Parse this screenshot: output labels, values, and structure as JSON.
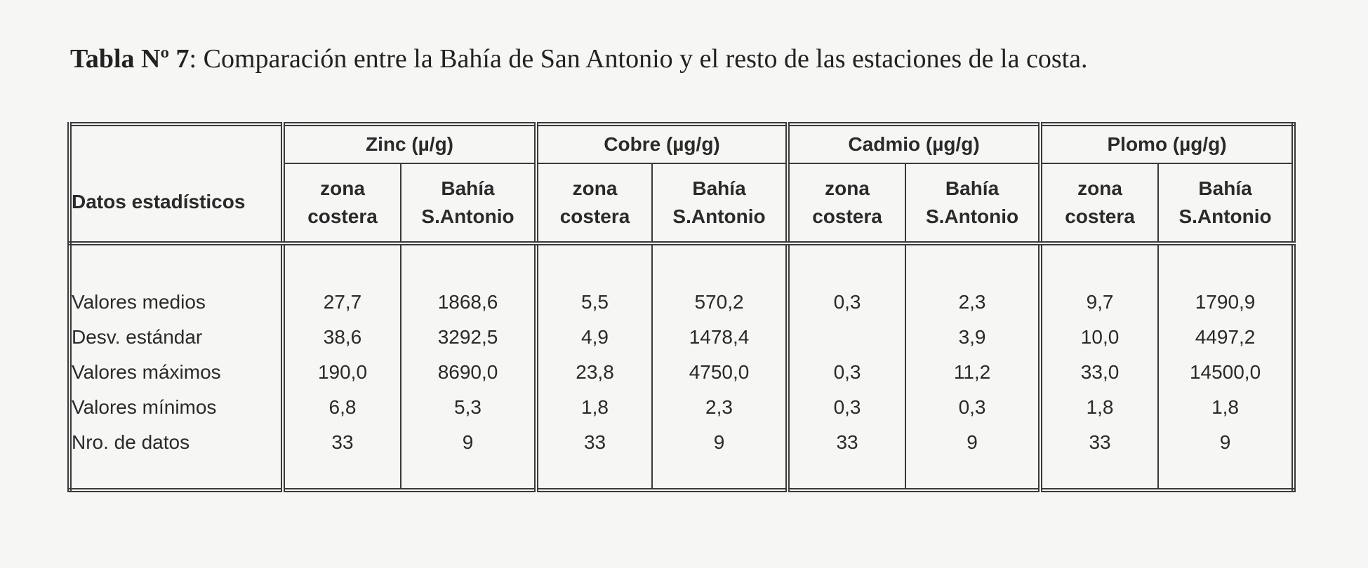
{
  "title": {
    "label": "Tabla Nº 7",
    "text": ": Comparación entre la Bahía de San Antonio y el resto de las estaciones de la costa."
  },
  "table": {
    "row_header": "Datos estadísticos",
    "groups": [
      "Zinc (µ/g)",
      "Cobre (µg/g)",
      "Cadmio (µg/g)",
      "Plomo (µg/g)"
    ],
    "subheaders": [
      [
        "zona",
        "costera"
      ],
      [
        "Bahía",
        "S.Antonio"
      ]
    ],
    "rows": [
      {
        "label": "Valores medios",
        "values": [
          "27,7",
          "1868,6",
          "5,5",
          "570,2",
          "0,3",
          "2,3",
          "9,7",
          "1790,9"
        ]
      },
      {
        "label": "Desv. estándar",
        "values": [
          "38,6",
          "3292,5",
          "4,9",
          "1478,4",
          "",
          "3,9",
          "10,0",
          "4497,2"
        ]
      },
      {
        "label": "Valores máximos",
        "values": [
          "190,0",
          "8690,0",
          "23,8",
          "4750,0",
          "0,3",
          "11,2",
          "33,0",
          "14500,0"
        ]
      },
      {
        "label": "Valores mínimos",
        "values": [
          "6,8",
          "5,3",
          "1,8",
          "2,3",
          "0,3",
          "0,3",
          "1,8",
          "1,8"
        ]
      },
      {
        "label": "Nro. de datos",
        "values": [
          "33",
          "9",
          "33",
          "9",
          "33",
          "9",
          "33",
          "9"
        ]
      }
    ]
  }
}
